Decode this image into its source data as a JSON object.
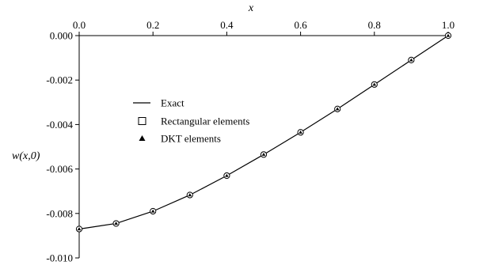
{
  "chart_data": {
    "type": "line",
    "title": "",
    "xlabel": "x",
    "ylabel": "w(x,0)",
    "xlim": [
      0.0,
      1.0
    ],
    "ylim": [
      -0.01,
      0.0
    ],
    "x_ticks": [
      "0.0",
      "0.2",
      "0.4",
      "0.6",
      "0.8",
      "1.0"
    ],
    "x_tick_values": [
      0.0,
      0.2,
      0.4,
      0.6,
      0.8,
      1.0
    ],
    "y_ticks": [
      "0.000",
      "-0.002",
      "-0.004",
      "-0.006",
      "-0.008",
      "-0.010"
    ],
    "y_tick_values": [
      0.0,
      -0.002,
      -0.004,
      -0.006,
      -0.008,
      -0.01
    ],
    "x_axis_position": "top",
    "grid": false,
    "legend_position": "middle-left",
    "series": [
      {
        "name": "Exact",
        "style": "line",
        "color": "#000000",
        "x": [
          0.0,
          0.1,
          0.2,
          0.3,
          0.4,
          0.5,
          0.6,
          0.7,
          0.8,
          0.9,
          1.0
        ],
        "values": [
          -0.0087,
          -0.00845,
          -0.0079,
          -0.00717,
          -0.0063,
          -0.00535,
          -0.00435,
          -0.0033,
          -0.0022,
          -0.0011,
          0.0
        ]
      },
      {
        "name": "Rectangular elements",
        "style": "hollow-square",
        "color": "#000000",
        "x": [
          0.0,
          0.1,
          0.2,
          0.3,
          0.4,
          0.5,
          0.6,
          0.7,
          0.8,
          0.9,
          1.0
        ],
        "values": [
          -0.0087,
          -0.00845,
          -0.0079,
          -0.00717,
          -0.0063,
          -0.00535,
          -0.00435,
          -0.0033,
          -0.0022,
          -0.0011,
          0.0
        ]
      },
      {
        "name": "DKT elements",
        "style": "filled-triangle",
        "color": "#000000",
        "x": [
          0.0,
          0.1,
          0.2,
          0.3,
          0.4,
          0.5,
          0.6,
          0.7,
          0.8,
          0.9,
          1.0
        ],
        "values": [
          -0.0087,
          -0.00845,
          -0.0079,
          -0.00717,
          -0.0063,
          -0.00535,
          -0.00435,
          -0.0033,
          -0.0022,
          -0.0011,
          0.0
        ]
      }
    ]
  }
}
